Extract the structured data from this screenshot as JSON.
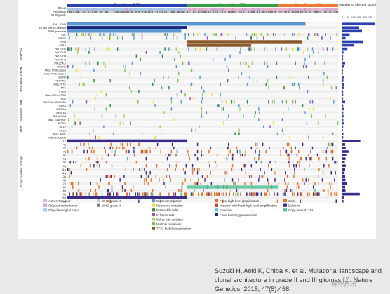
{
  "citation": "Suzuki H, Aoki K, Chiba K, et al. Mutational landscape and clonal architecture in grade II and III gliomas.[J]. Nature Genetics, 2015, 47(5):458.",
  "watermark": "神外资讯",
  "chart_data": {
    "type": "heatmap",
    "title": "",
    "header_rows": [
      "Group",
      "Pathology",
      "WHO grade"
    ],
    "groups": [
      {
        "name": "Type I (n = 147)",
        "n": 147,
        "color": "#2b3fae"
      },
      {
        "name": "Type II (n = 112)",
        "n": 112,
        "color": "#35a145"
      },
      {
        "name": "Type III (n = 73)",
        "n": 73,
        "color": "#ea7a36"
      }
    ],
    "section_labels": [
      "NOTCH",
      "RTK-PI3K-mTOR",
      "RB",
      "SWI/SNF",
      "HMT",
      "Copy number change"
    ],
    "genes": [
      {
        "label": "IDH1, IDH2",
        "section": "top",
        "count": 290
      },
      {
        "label": "1p and 19q co-deletion",
        "section": "top",
        "count": 150
      },
      {
        "label": "TERT promoter",
        "section": "top",
        "count": 175
      },
      {
        "label": "CIC",
        "section": "top",
        "count": 65
      },
      {
        "label": "FUBP1",
        "section": "top",
        "count": 28
      },
      {
        "label": "TP53",
        "section": "top",
        "count": 185
      },
      {
        "label": "ATRX",
        "section": "top",
        "count": 100
      },
      {
        "label": "NOTCH1",
        "section": "NOTCH",
        "count": 45
      },
      {
        "label": "NOTCH2",
        "section": "NOTCH",
        "count": 10
      },
      {
        "label": "NOTCH3",
        "section": "NOTCH",
        "count": 7
      },
      {
        "label": "NOTCH4",
        "section": "NOTCH",
        "count": 6
      },
      {
        "label": "PIK3CA, I",
        "section": "RTK-PI3K-mTOR",
        "count": 25
      },
      {
        "label": "PIK3R1",
        "section": "RTK-PI3K-mTOR",
        "count": 12
      },
      {
        "label": "Misc. PI3K class I",
        "section": "RTK-PI3K-mTOR",
        "count": 6
      },
      {
        "label": "Misc. PI3K class II",
        "section": "RTK-PI3K-mTOR",
        "count": 5
      },
      {
        "label": "EGFR",
        "section": "RTK-PI3K-mTOR",
        "count": 12
      },
      {
        "label": "PDGFRA",
        "section": "RTK-PI3K-mTOR",
        "count": 10
      },
      {
        "label": "Misc. RTK",
        "section": "RTK-PI3K-mTOR",
        "count": 14
      },
      {
        "label": "NF1",
        "section": "RTK-PI3K-mTOR",
        "count": 15
      },
      {
        "label": "PTEN",
        "section": "RTK-PI3K-mTOR",
        "count": 7
      },
      {
        "label": "Misc. RTK-mTOR",
        "section": "RTK-PI3K-mTOR",
        "count": 8
      },
      {
        "label": "RB1",
        "section": "RB",
        "count": 7
      },
      {
        "label": "CDKN2A, CDKN2B",
        "section": "RB",
        "count": 25
      },
      {
        "label": "CDK4",
        "section": "RB",
        "count": 8
      },
      {
        "label": "ARID1A",
        "section": "SWI/SNF",
        "count": 12
      },
      {
        "label": "ARID1B",
        "section": "SWI/SNF",
        "count": 8
      },
      {
        "label": "SMARCA4",
        "section": "SWI/SNF",
        "count": 11
      },
      {
        "label": "Misc. SWI/SNF",
        "section": "SWI/SNF",
        "count": 9
      },
      {
        "label": "SETD2",
        "section": "HMT",
        "count": 12
      },
      {
        "label": "MLL2",
        "section": "HMT",
        "count": 7
      },
      {
        "label": "MLL3",
        "section": "HMT",
        "count": 5
      },
      {
        "label": "Misc. HMT",
        "section": "HMT",
        "count": 10
      },
      {
        "label": "MDM2, MDM4",
        "section": "other",
        "count": 8
      },
      {
        "label": "1p",
        "section": "Copy number change",
        "count": 160
      },
      {
        "label": "4q",
        "section": "Copy number change",
        "count": 25
      },
      {
        "label": "7p",
        "section": "Copy number change",
        "count": 30
      },
      {
        "label": "7q",
        "section": "Copy number change",
        "count": 55
      },
      {
        "label": "9p",
        "section": "Copy number change",
        "count": 35
      },
      {
        "label": "9q",
        "section": "Copy number change",
        "count": 28
      },
      {
        "label": "10p",
        "section": "Copy number change",
        "count": 22
      },
      {
        "label": "10q",
        "section": "Copy number change",
        "count": 30
      },
      {
        "label": "11p",
        "section": "Copy number change",
        "count": 25
      },
      {
        "label": "11q",
        "section": "Copy number change",
        "count": 20
      },
      {
        "label": "13q",
        "section": "Copy number change",
        "count": 25
      },
      {
        "label": "14q",
        "section": "Copy number change",
        "count": 28
      },
      {
        "label": "17p",
        "section": "Copy number change",
        "count": 40
      },
      {
        "label": "18p",
        "section": "Copy number change",
        "count": 25
      },
      {
        "label": "18q",
        "section": "Copy number change",
        "count": 28
      },
      {
        "label": "19q",
        "section": "Copy number change",
        "count": 155
      },
      {
        "label": "20p",
        "section": "Copy number change",
        "count": 12
      },
      {
        "label": "20q",
        "section": "Copy number change",
        "count": 10
      }
    ],
    "bar_axis": {
      "label": "Number of affected samples",
      "ticks": [
        0,
        50,
        100,
        150,
        200,
        250
      ],
      "xlim": [
        0,
        300
      ]
    },
    "legend": [
      {
        "label": "Astrocytic tumor",
        "color": "#efb4cd"
      },
      {
        "label": "Oligoastrocytic tumor",
        "color": "#c2a8d9"
      },
      {
        "label": "Oligodendroglial tumor",
        "color": "#a6cbe8"
      },
      {
        "label": "WHO grade II",
        "color": "#c9c9c9"
      },
      {
        "label": "WHO grade III",
        "color": "#7d7d7d"
      },
      {
        "label": "Missense mutation",
        "color": "#5b98d2"
      },
      {
        "label": "Nonsense mutation",
        "color": "#f2e037"
      },
      {
        "label": "Frameshift indel",
        "color": "#2a8f3d"
      },
      {
        "label": "In-frame indel",
        "color": "#9b4fc5"
      },
      {
        "label": "Splice-site variation",
        "color": "#a6d163"
      },
      {
        "label": "Multiple mutations",
        "color": "#7dc24a"
      },
      {
        "label": "TP53 biallelic inactivation",
        "color": "#8a5a2b"
      },
      {
        "label": "Focal high-level amplification",
        "color": "#ee6b2a"
      },
      {
        "label": "Mutation with focal high-level amplification",
        "color": "#d4352c"
      },
      {
        "label": "Inversion",
        "color": "#53c2d3"
      },
      {
        "label": "Focal homozygous deletion",
        "color": "#1c2680"
      },
      {
        "label": "Gain",
        "color": "#e97728"
      },
      {
        "label": "Deletion",
        "color": "#3a2d8a"
      },
      {
        "label": "Copy-neutral LOH",
        "color": "#55c196"
      }
    ]
  }
}
